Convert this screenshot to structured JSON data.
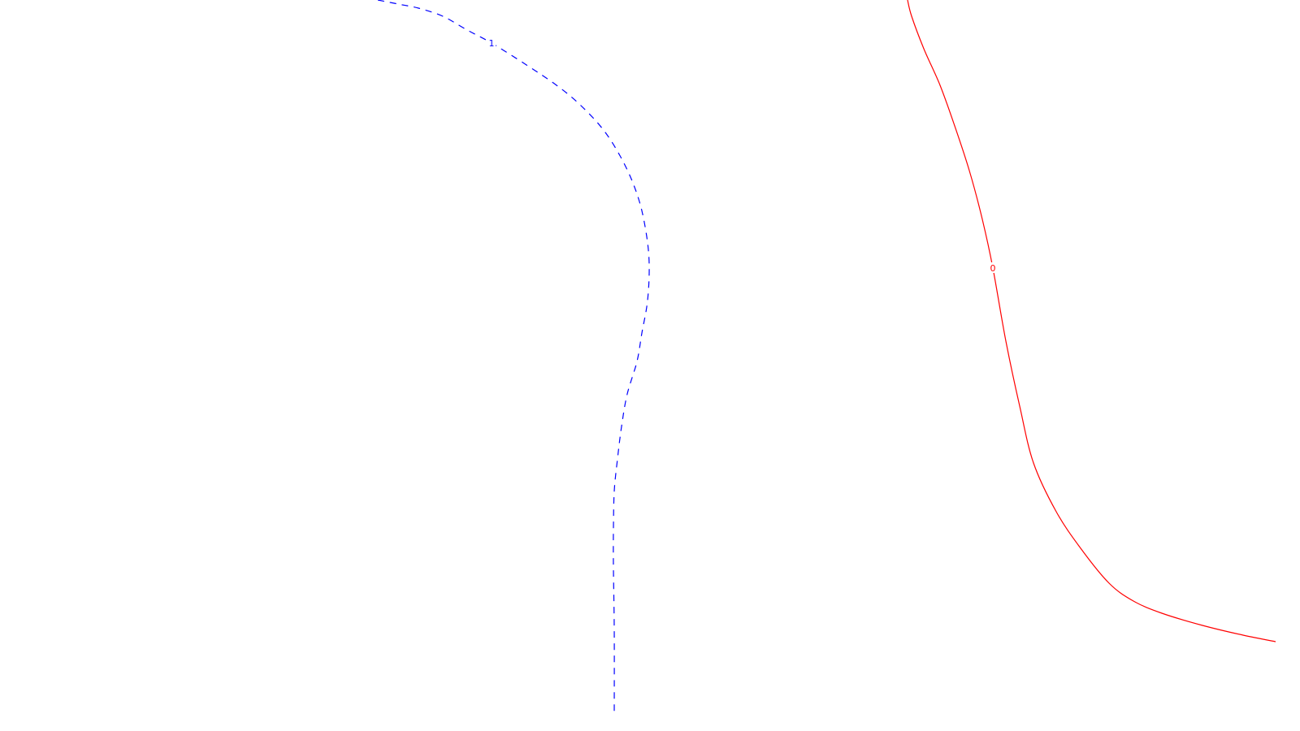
{
  "chart_data": {
    "type": "line",
    "grid": false,
    "legend": "none",
    "series": [
      {
        "label": "1",
        "color": "#0000ff",
        "style": "dashed",
        "label_index": 5,
        "points": [
          [
            465,
            0
          ],
          [
            490,
            5
          ],
          [
            515,
            10
          ],
          [
            545,
            20
          ],
          [
            575,
            37
          ],
          [
            605,
            53
          ],
          [
            648,
            80
          ],
          [
            685,
            105
          ],
          [
            715,
            130
          ],
          [
            745,
            163
          ],
          [
            770,
            205
          ],
          [
            786,
            245
          ],
          [
            795,
            285
          ],
          [
            799,
            325
          ],
          [
            797,
            370
          ],
          [
            790,
            410
          ],
          [
            784,
            445
          ],
          [
            772,
            485
          ],
          [
            765,
            525
          ],
          [
            760,
            565
          ],
          [
            756,
            605
          ],
          [
            755,
            650
          ],
          [
            755,
            700
          ],
          [
            756,
            775
          ],
          [
            756,
            880
          ]
        ]
      },
      {
        "label": "0",
        "color": "#ff0000",
        "style": "solid",
        "label_index": 7,
        "points": [
          [
            1117,
            0
          ],
          [
            1122,
            20
          ],
          [
            1137,
            60
          ],
          [
            1157,
            105
          ],
          [
            1175,
            155
          ],
          [
            1193,
            210
          ],
          [
            1209,
            270
          ],
          [
            1222,
            330
          ],
          [
            1238,
            420
          ],
          [
            1255,
            500
          ],
          [
            1272,
            570
          ],
          [
            1300,
            630
          ],
          [
            1330,
            675
          ],
          [
            1365,
            718
          ],
          [
            1395,
            740
          ],
          [
            1430,
            755
          ],
          [
            1480,
            770
          ],
          [
            1530,
            782
          ],
          [
            1570,
            790
          ]
        ]
      }
    ]
  }
}
